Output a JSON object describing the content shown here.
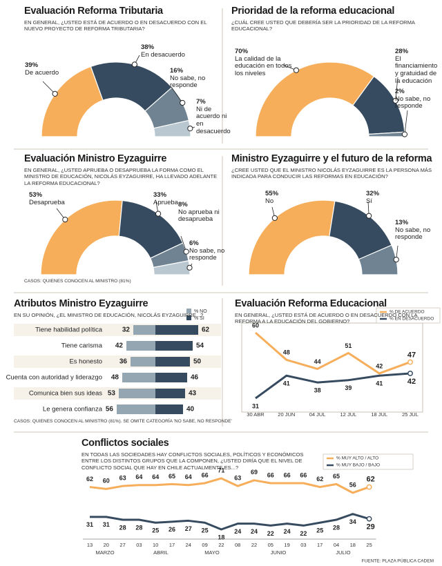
{
  "chart_data": [
    {
      "type": "semi-donut",
      "title": "Evaluación Reforma Tributaria",
      "subtitle": "En general, ¿usted está de acuerdo o en desacuerdo con el nuevo proyecto de reforma tributaria?",
      "categories": [
        "De acuerdo",
        "En desacuerdo",
        "No sabe, no responde",
        "Ni de acuerdo ni en desacuerdo"
      ],
      "values": [
        39,
        38,
        16,
        7
      ],
      "value_labels": [
        "39%",
        "38%",
        "16%",
        "7%"
      ],
      "colors": [
        "#f6ae5b",
        "#364b5f",
        "#6f8393",
        "#b9c7d1"
      ]
    },
    {
      "type": "semi-donut",
      "title": "Prioridad de la reforma educacional",
      "subtitle": "¿Cuál cree usted que debería ser la prioridad de la reforma educacional?",
      "categories": [
        "La calidad de la educación en todos los niveles",
        "El financiamiento y gratuidad de la educación",
        "No sabe, no responde"
      ],
      "values": [
        70,
        28,
        2
      ],
      "value_labels": [
        "70%",
        "28%",
        "2%"
      ],
      "colors": [
        "#f6ae5b",
        "#364b5f",
        "#6f8393"
      ]
    },
    {
      "type": "semi-donut",
      "title": "Evaluación Ministro Eyzaguirre",
      "subtitle": "En general, ¿usted aprueba o desaprueba la forma como el ministro de educación, Nicolás Eyzaguirre, ha llevado adelante la reforma educacional?",
      "categories": [
        "Desaprueba",
        "Aprueba",
        "No aprueba ni desaprueba",
        "No sabe, no responde"
      ],
      "values": [
        53,
        33,
        8,
        6
      ],
      "value_labels": [
        "53%",
        "33%",
        "8%",
        "6%"
      ],
      "colors": [
        "#f6ae5b",
        "#364b5f",
        "#6f8393",
        "#b9c7d1"
      ],
      "note": "Casos: quienes conocen al ministro (81%)"
    },
    {
      "type": "semi-donut",
      "title": "Ministro Eyzaguirre y el futuro de la reforma",
      "subtitle": "¿Cree usted que el ministro Nicolás Eyzaguirre es la persona más indicada para conducir las reformas en educación?",
      "categories": [
        "No",
        "Sí",
        "No sabe, no responde"
      ],
      "values": [
        55,
        32,
        13
      ],
      "value_labels": [
        "55%",
        "32%",
        "13%"
      ],
      "colors": [
        "#f6ae5b",
        "#364b5f",
        "#6f8393"
      ]
    },
    {
      "type": "diverging-bar",
      "title": "Atributos Ministro Eyzaguirre",
      "subtitle": "En su opinión, ¿el ministro de educación, Nicolás Eyzaguirre...?",
      "categories": [
        "Tiene habilidad política",
        "Tiene carisma",
        "Es honesto",
        "Cuenta con autoridad y liderazgo",
        "Comunica bien sus ideas",
        "Le genera confianza"
      ],
      "series": [
        {
          "name": "% NO",
          "color": "#95a6b3",
          "values": [
            32,
            42,
            36,
            48,
            53,
            56
          ]
        },
        {
          "name": "% SI",
          "color": "#364b5f",
          "values": [
            62,
            54,
            50,
            46,
            43,
            40
          ]
        }
      ],
      "note": "Casos: quienes conocen al ministro (81%). Se omite categoría 'No sabe, no responde'"
    },
    {
      "type": "line",
      "title": "Evaluación Reforma Educacional",
      "subtitle": "En general, ¿usted está de acuerdo o en desacuerdo con la reforma a la educación del gobierno?",
      "categories": [
        "30 ABR",
        "20 JUN",
        "04 JUL",
        "12 JUL",
        "18 JUL",
        "25 JUL"
      ],
      "series": [
        {
          "name": "% DE ACUERDO",
          "color": "#f6ae5b",
          "values": [
            60,
            48,
            44,
            51,
            42,
            47
          ]
        },
        {
          "name": "% EN DESACUERDO",
          "color": "#364b5f",
          "values": [
            31,
            41,
            38,
            39,
            41,
            42
          ]
        }
      ]
    },
    {
      "type": "line",
      "title": "Conflictos sociales",
      "subtitle": "En todas las sociedades hay conflictos sociales, políticos y económicos entre los distintos grupos que la componen, ¿usted diría que el nivel de conflicto social que hay en Chile actualmente es...?",
      "categories": [
        "13",
        "20",
        "27",
        "03",
        "10",
        "17",
        "24",
        "09",
        "22",
        "08",
        "22",
        "05",
        "19",
        "03",
        "17",
        "04",
        "18",
        "25"
      ],
      "month_labels": [
        "MARZO",
        "ABRIL",
        "MAYO",
        "JUNIO",
        "JULIO"
      ],
      "series": [
        {
          "name": "% MUY ALTO / ALTO",
          "color": "#f6ae5b",
          "values": [
            62,
            60,
            63,
            64,
            64,
            65,
            64,
            66,
            71,
            63,
            69,
            66,
            66,
            66,
            62,
            65,
            56,
            62
          ]
        },
        {
          "name": "% MUY BAJO / BAJO",
          "color": "#364b5f",
          "values": [
            31,
            31,
            28,
            28,
            25,
            26,
            27,
            25,
            18,
            24,
            24,
            22,
            24,
            22,
            25,
            28,
            34,
            29
          ]
        }
      ],
      "source": "FUENTE: PLAZA PÚBLICA CADEM"
    }
  ]
}
